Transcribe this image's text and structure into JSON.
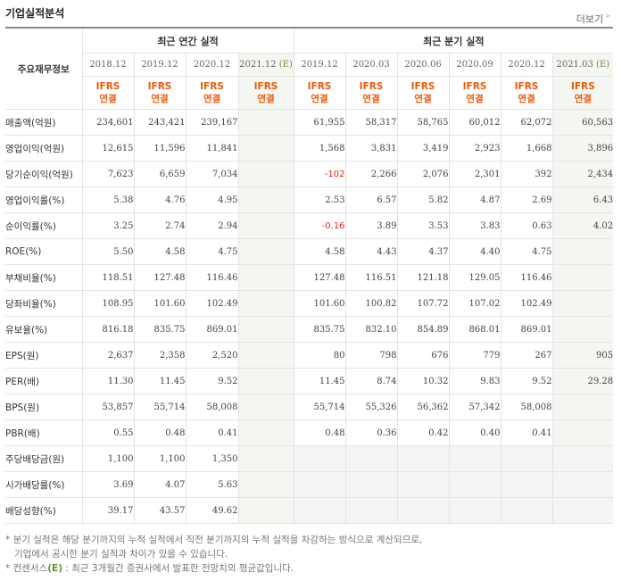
{
  "title": "기업실적분석",
  "more_link": "더보기",
  "corner_label": "주요재무정보",
  "annual_header": "최근 연간 실적",
  "quarter_header": "최근 분기 실적",
  "annual_periods": [
    "2018.12",
    "2019.12",
    "2020.12",
    "2021.12"
  ],
  "quarter_periods": [
    "2019.12",
    "2020.03",
    "2020.06",
    "2020.09",
    "2020.12",
    "2021.03"
  ],
  "estimate_mark": "(E)",
  "ifrs_label": "IFRS",
  "consol_label": "연결",
  "rows": [
    {
      "label": "매출액(억원)",
      "annual": [
        "234,601",
        "243,421",
        "239,167",
        ""
      ],
      "quarter": [
        "61,955",
        "58,317",
        "58,765",
        "60,012",
        "62,072",
        "60,563"
      ]
    },
    {
      "label": "영업이익(억원)",
      "annual": [
        "12,615",
        "11,596",
        "11,841",
        ""
      ],
      "quarter": [
        "1,568",
        "3,831",
        "3,419",
        "2,923",
        "1,668",
        "3,896"
      ]
    },
    {
      "label": "당기순이익(억원)",
      "annual": [
        "7,623",
        "6,659",
        "7,034",
        ""
      ],
      "quarter": [
        "-102",
        "2,266",
        "2,076",
        "2,301",
        "392",
        "2,434"
      ]
    },
    {
      "label": "영업이익률(%)",
      "annual": [
        "5.38",
        "4.76",
        "4.95",
        ""
      ],
      "quarter": [
        "2.53",
        "6.57",
        "5.82",
        "4.87",
        "2.69",
        "6.43"
      ]
    },
    {
      "label": "순이익률(%)",
      "annual": [
        "3.25",
        "2.74",
        "2.94",
        ""
      ],
      "quarter": [
        "-0.16",
        "3.89",
        "3.53",
        "3.83",
        "0.63",
        "4.02"
      ]
    },
    {
      "label": "ROE(%)",
      "annual": [
        "5.50",
        "4.58",
        "4.75",
        ""
      ],
      "quarter": [
        "4.58",
        "4.43",
        "4.37",
        "4.40",
        "4.75",
        ""
      ]
    },
    {
      "label": "부채비율(%)",
      "annual": [
        "118.51",
        "127.48",
        "116.46",
        ""
      ],
      "quarter": [
        "127.48",
        "116.51",
        "121.18",
        "129.05",
        "116.46",
        ""
      ]
    },
    {
      "label": "당좌비율(%)",
      "annual": [
        "108.95",
        "101.60",
        "102.49",
        ""
      ],
      "quarter": [
        "101.60",
        "100.82",
        "107.72",
        "107.02",
        "102.49",
        ""
      ]
    },
    {
      "label": "유보율(%)",
      "annual": [
        "816.18",
        "835.75",
        "869.01",
        ""
      ],
      "quarter": [
        "835.75",
        "832.10",
        "854.89",
        "868.01",
        "869.01",
        ""
      ]
    },
    {
      "label": "EPS(원)",
      "annual": [
        "2,637",
        "2,358",
        "2,520",
        ""
      ],
      "quarter": [
        "80",
        "798",
        "676",
        "779",
        "267",
        "905"
      ]
    },
    {
      "label": "PER(배)",
      "annual": [
        "11.30",
        "11.45",
        "9.52",
        ""
      ],
      "quarter": [
        "11.45",
        "8.74",
        "10.32",
        "9.83",
        "9.52",
        "29.28"
      ]
    },
    {
      "label": "BPS(원)",
      "annual": [
        "53,857",
        "55,714",
        "58,008",
        ""
      ],
      "quarter": [
        "55,714",
        "55,326",
        "56,362",
        "57,342",
        "58,008",
        ""
      ]
    },
    {
      "label": "PBR(배)",
      "annual": [
        "0.55",
        "0.48",
        "0.41",
        ""
      ],
      "quarter": [
        "0.48",
        "0.36",
        "0.42",
        "0.40",
        "0.41",
        ""
      ]
    },
    {
      "label": "주당배당금(원)",
      "annual": [
        "1,100",
        "1,100",
        "1,350",
        ""
      ],
      "quarter": [
        "",
        "",
        "",
        "",
        "",
        ""
      ]
    },
    {
      "label": "시가배당률(%)",
      "annual": [
        "3.69",
        "4.07",
        "5.63",
        ""
      ],
      "quarter": [
        "",
        "",
        "",
        "",
        "",
        ""
      ]
    },
    {
      "label": "배당성향(%)",
      "annual": [
        "39.17",
        "43.57",
        "49.62",
        ""
      ],
      "quarter": [
        "",
        "",
        "",
        "",
        "",
        ""
      ]
    }
  ],
  "notes": {
    "line1": "분기 실적은 해당 분기까지의 누적 실적에서 직전 분기까지의 누적 실적을 차감하는 방식으로 계산되므로,",
    "line2": "기업에서 공시한 분기 실적과 차이가 있을 수 있습니다.",
    "line3_prefix": "컨센서스",
    "line3_mark": "(E)",
    "line3_suffix": ": 최근 3개월간 증권사에서 발표한 전망치의 평균값입니다."
  },
  "colors": {
    "ifrs": "#e85a0c",
    "negative": "#e8241a",
    "estimate": "#6b8d3c",
    "estimate_bg": "#f4f7f1"
  }
}
